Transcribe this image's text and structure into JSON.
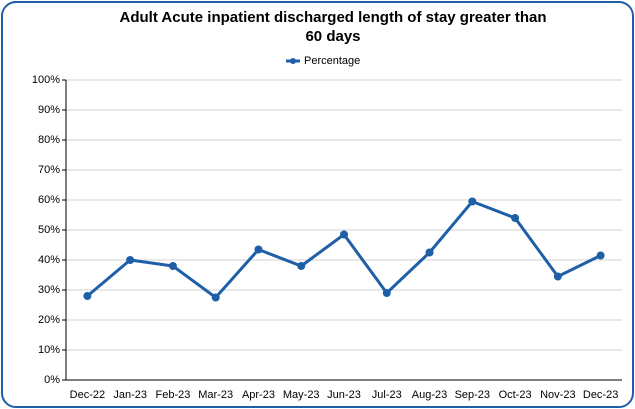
{
  "chart_data": {
    "type": "line",
    "title": "Adult Acute inpatient discharged length of stay greater than 60 days",
    "categories": [
      "Dec-22",
      "Jan-23",
      "Feb-23",
      "Mar-23",
      "Apr-23",
      "May-23",
      "Jun-23",
      "Jul-23",
      "Aug-23",
      "Sep-23",
      "Oct-23",
      "Nov-23",
      "Dec-23"
    ],
    "series": [
      {
        "name": "Percentage",
        "color": "#1f5fa8",
        "values": [
          28,
          40,
          38,
          27.5,
          43.5,
          38,
          48.5,
          29,
          42.5,
          59.5,
          54,
          34.5,
          41.5
        ]
      }
    ],
    "ylim": [
      0,
      100
    ],
    "yticks": [
      {
        "value": 0,
        "label": "0%"
      },
      {
        "value": 10,
        "label": "10%"
      },
      {
        "value": 20,
        "label": "20%"
      },
      {
        "value": 30,
        "label": "30%"
      },
      {
        "value": 40,
        "label": "40%"
      },
      {
        "value": 50,
        "label": "50%"
      },
      {
        "value": 60,
        "label": "60%"
      },
      {
        "value": 70,
        "label": "70%"
      },
      {
        "value": 80,
        "label": "80%"
      },
      {
        "value": 90,
        "label": "90%"
      },
      {
        "value": 100,
        "label": "100%"
      }
    ],
    "grid": true,
    "legend": "top"
  }
}
